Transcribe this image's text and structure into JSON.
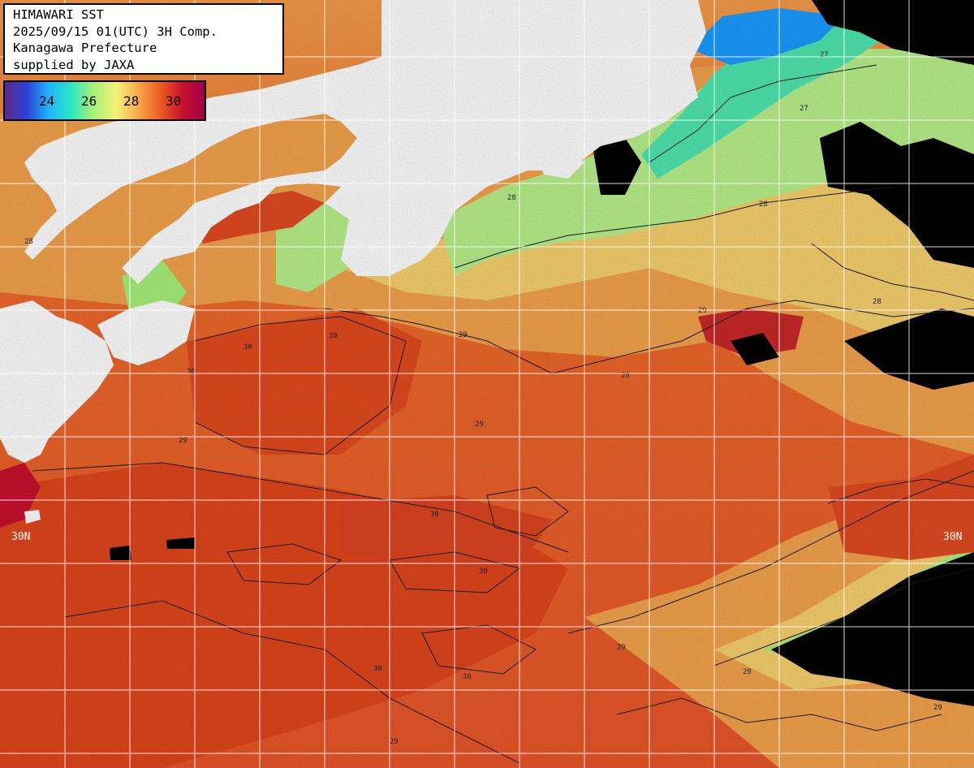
{
  "header": {
    "line1": "HIMAWARI SST",
    "line2": "2025/09/15 01(UTC) 3H Comp.",
    "line3": "Kanagawa Prefecture",
    "line4": "supplied by JAXA"
  },
  "legend": {
    "ticks": [
      "24",
      "26",
      "28",
      "30"
    ],
    "colors": [
      "#5b2a8a",
      "#2e3fd6",
      "#1fb6ff",
      "#29e6c2",
      "#a6f07a",
      "#f4f07a",
      "#f7a64a",
      "#ee5a22",
      "#c8102e",
      "#a0004a"
    ]
  },
  "map": {
    "lat_label_left": "30N",
    "lat_label_right": "30N",
    "contour_values": [
      "27",
      "28",
      "29",
      "30"
    ],
    "colors": {
      "land": "#ffffff",
      "cloud": "#000000",
      "sst_30": "#e24a1e",
      "sst_29": "#f08a3a",
      "sst_28": "#f6cc6a",
      "sst_27": "#b8f08a",
      "sst_26": "#4fe6b0",
      "sst_25": "#1a9bff",
      "grid": "#ffffff"
    }
  }
}
